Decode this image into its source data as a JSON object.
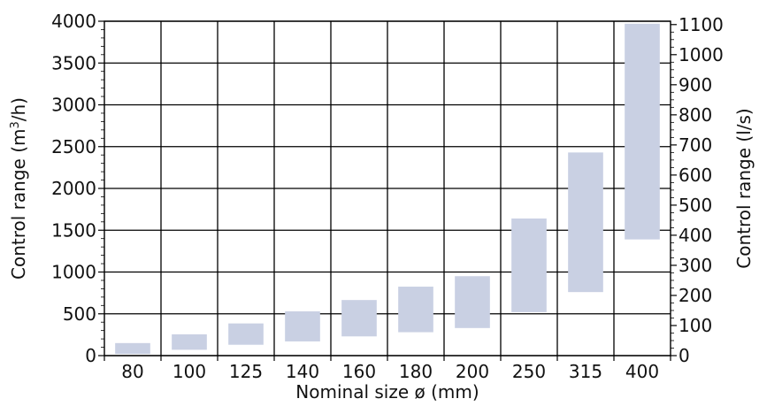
{
  "chart_data": {
    "type": "bar",
    "subtype": "floating-range",
    "categories": [
      "80",
      "100",
      "125",
      "140",
      "160",
      "180",
      "200",
      "250",
      "315",
      "400"
    ],
    "series": [
      {
        "values": [
          [
            20,
            150
          ],
          [
            70,
            255
          ],
          [
            130,
            385
          ],
          [
            170,
            530
          ],
          [
            230,
            665
          ],
          [
            280,
            825
          ],
          [
            330,
            950
          ],
          [
            520,
            1640
          ],
          [
            760,
            2430
          ],
          [
            1390,
            3970
          ]
        ]
      }
    ],
    "xlabel": "Nominal size ø (mm)",
    "ylabel_parts": [
      "Control range (m",
      "3",
      "/h)"
    ],
    "y2label": "Control range (l/s)",
    "ylim": [
      0,
      4000
    ],
    "y_ticks": [
      "0",
      "500",
      "1000",
      "1500",
      "2000",
      "2500",
      "3000",
      "3500",
      "4000"
    ],
    "y2lim": [
      0,
      1111.1
    ],
    "y2_ticks": [
      "0",
      "100",
      "200",
      "300",
      "400",
      "500",
      "600",
      "700",
      "800",
      "900",
      "1000",
      "1100"
    ],
    "grid": true,
    "colors": {
      "bar": "#c9d0e3",
      "grid": "#000000"
    }
  }
}
